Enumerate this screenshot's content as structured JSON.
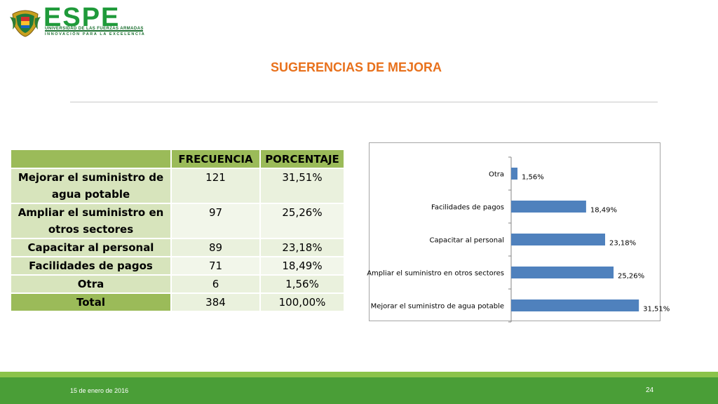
{
  "header": {
    "logo_text": "ESPE",
    "logo_line1": "UNIVERSIDAD DE LAS FUERZAS ARMADAS",
    "logo_line2": "INNOVACIÓN PARA LA EXCELENCIA"
  },
  "title": "SUGERENCIAS DE MEJORA",
  "table": {
    "headers": [
      "",
      "FRECUENCIA",
      "PORCENTAJE"
    ],
    "rows": [
      {
        "label": "Mejorar el suministro de agua potable",
        "frecuencia": "121",
        "porcentaje": "31,51%"
      },
      {
        "label": "Ampliar el suministro en otros sectores",
        "frecuencia": "97",
        "porcentaje": "25,26%"
      },
      {
        "label": "Capacitar al personal",
        "frecuencia": "89",
        "porcentaje": "23,18%"
      },
      {
        "label": "Facilidades de pagos",
        "frecuencia": "71",
        "porcentaje": "18,49%"
      },
      {
        "label": "Otra",
        "frecuencia": "6",
        "porcentaje": "1,56%"
      },
      {
        "label": "Total",
        "frecuencia": "384",
        "porcentaje": "100,00%"
      }
    ]
  },
  "chart_data": {
    "type": "bar",
    "orientation": "horizontal",
    "categories": [
      "Otra",
      "Facilidades de pagos",
      "Capacitar al personal",
      "Ampliar el suministro en otros sectores",
      "Mejorar el suministro de agua potable"
    ],
    "values": [
      1.56,
      18.49,
      23.18,
      25.26,
      31.51
    ],
    "data_labels": [
      "1,56%",
      "18,49%",
      "23,18%",
      "25,26%",
      "31,51%"
    ],
    "title": "",
    "xlabel": "",
    "ylabel": "",
    "xlim": [
      0,
      32
    ],
    "grid": false,
    "legend": "none",
    "bar_color": "#4f81bd"
  },
  "footer": {
    "date": "15 de enero de 2016",
    "page": "24"
  }
}
